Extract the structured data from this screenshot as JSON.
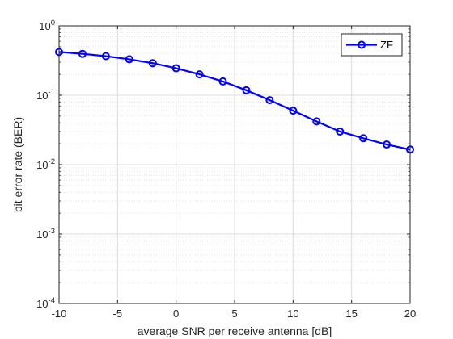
{
  "chart_data": {
    "type": "line",
    "title": "",
    "xlabel": "average SNR per receive antenna [dB]",
    "ylabel": "bit error rate (BER)",
    "xlim": [
      -10,
      20
    ],
    "ylim": [
      0.0001,
      1
    ],
    "yscale": "log",
    "grid": true,
    "minor_grid": true,
    "legend_position": "top-right",
    "x_ticks": [
      -10,
      -5,
      0,
      5,
      10,
      15,
      20
    ],
    "x_tick_labels": [
      "-10",
      "-5",
      "0",
      "5",
      "10",
      "15",
      "20"
    ],
    "y_ticks": [
      0.0001,
      0.001,
      0.01,
      0.1,
      1
    ],
    "y_tick_labels": [
      {
        "base": "10",
        "exp": "-4"
      },
      {
        "base": "10",
        "exp": "-3"
      },
      {
        "base": "10",
        "exp": "-2"
      },
      {
        "base": "10",
        "exp": "-1"
      },
      {
        "base": "10",
        "exp": "0"
      }
    ],
    "x": [
      -10,
      -8,
      -6,
      -4,
      -2,
      0,
      2,
      4,
      6,
      8,
      10,
      12,
      14,
      16,
      18,
      20
    ],
    "series": [
      {
        "name": "ZF",
        "color": "#0000ff",
        "marker": "circle",
        "values": [
          0.42,
          0.395,
          0.366,
          0.33,
          0.29,
          0.245,
          0.2,
          0.158,
          0.118,
          0.085,
          0.06,
          0.042,
          0.03,
          0.024,
          0.0195,
          0.0165
        ]
      }
    ]
  }
}
